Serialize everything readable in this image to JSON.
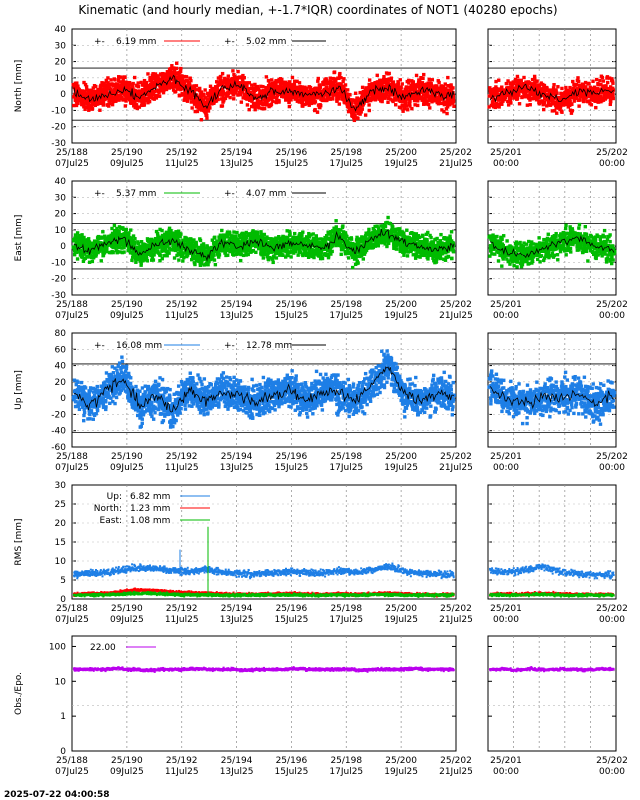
{
  "title": "Kinematic (and hourly median, +-1.7*IQR) coordinates of NOT1 (40280 epochs)",
  "timestamp": "2025-07-22 04:00:58",
  "colors": {
    "north": "#ff0000",
    "east": "#00bb00",
    "up": "#1e7fe6",
    "obs": "#bb00ee",
    "median": "#000000"
  },
  "chart_data": [
    {
      "type": "scatter",
      "name": "north-panel",
      "ylabel": "North [mm]",
      "ylim": [
        -30,
        40
      ],
      "yticks": [
        "40",
        "30",
        "20",
        "10",
        "0",
        "-10",
        "-20",
        "-30"
      ],
      "bands": [
        16,
        -16
      ],
      "legend": [
        "6.19 mm",
        "5.02 mm"
      ],
      "x_ticks_main": [
        "25/188",
        "25/190",
        "25/192",
        "25/194",
        "25/196",
        "25/198",
        "25/200",
        "25/202"
      ],
      "x_dates_main": [
        "07Jul25",
        "09Jul25",
        "11Jul25",
        "13Jul25",
        "15Jul25",
        "17Jul25",
        "19Jul25",
        "21Jul25"
      ],
      "x_ticks_zoom": [
        "25/201",
        "25/202"
      ],
      "x_times_zoom": [
        "00:00",
        "00:00"
      ],
      "series": [
        {
          "name": "",
          "values": [
            1,
            -4,
            0,
            3,
            -2,
            5,
            10,
            2,
            -8,
            4,
            6,
            -3,
            1,
            3,
            -1,
            0,
            5,
            -10,
            2,
            4,
            -2,
            3,
            0,
            -1
          ]
        },
        {
          "name": "",
          "values": [
            -2,
            1,
            4,
            0,
            -5,
            2,
            0,
            3
          ]
        }
      ]
    },
    {
      "type": "scatter",
      "name": "east-panel",
      "ylabel": "East [mm]",
      "ylim": [
        -30,
        40
      ],
      "yticks": [
        "40",
        "30",
        "20",
        "10",
        "0",
        "-10",
        "-20",
        "-30"
      ],
      "bands": [
        14,
        -14
      ],
      "legend": [
        "5.37 mm",
        "4.07 mm"
      ],
      "x_ticks_main": [
        "25/188",
        "25/190",
        "25/192",
        "25/194",
        "25/196",
        "25/198",
        "25/200",
        "25/202"
      ],
      "x_dates_main": [
        "07Jul25",
        "09Jul25",
        "11Jul25",
        "13Jul25",
        "15Jul25",
        "17Jul25",
        "19Jul25",
        "21Jul25"
      ],
      "x_ticks_zoom": [
        "25/201",
        "25/202"
      ],
      "x_times_zoom": [
        "00:00",
        "00:00"
      ],
      "series": [
        {
          "name": "",
          "values": [
            0,
            -3,
            2,
            4,
            -5,
            1,
            3,
            -2,
            -6,
            2,
            0,
            3,
            -1,
            2,
            1,
            -2,
            6,
            -4,
            5,
            8,
            2,
            0,
            -2,
            0
          ]
        },
        {
          "name": "",
          "values": [
            2,
            -4,
            -6,
            -2,
            3,
            5,
            0,
            -3
          ]
        }
      ]
    },
    {
      "type": "scatter",
      "name": "up-panel",
      "ylabel": "Up [mm]",
      "ylim": [
        -60,
        80
      ],
      "yticks": [
        "80",
        "60",
        "40",
        "20",
        "0",
        "-20",
        "-40",
        "-60"
      ],
      "bands": [
        42,
        -42
      ],
      "legend": [
        "16.08 mm",
        "12.78 mm"
      ],
      "x_ticks_main": [
        "25/188",
        "25/190",
        "25/192",
        "25/194",
        "25/196",
        "25/198",
        "25/200",
        "25/202"
      ],
      "x_dates_main": [
        "07Jul25",
        "09Jul25",
        "11Jul25",
        "13Jul25",
        "15Jul25",
        "17Jul25",
        "19Jul25",
        "21Jul25"
      ],
      "x_ticks_zoom": [
        "25/201",
        "25/202"
      ],
      "x_times_zoom": [
        "00:00",
        "00:00"
      ],
      "series": [
        {
          "name": "",
          "values": [
            5,
            -8,
            10,
            25,
            -10,
            5,
            -15,
            12,
            -5,
            8,
            3,
            -6,
            4,
            10,
            -2,
            6,
            8,
            -4,
            15,
            40,
            5,
            -3,
            6,
            2
          ]
        },
        {
          "name": "",
          "values": [
            12,
            -2,
            -5,
            0,
            3,
            5,
            -8,
            2
          ]
        }
      ]
    },
    {
      "type": "scatter",
      "name": "rms-panel",
      "ylabel": "RMS [mm]",
      "ylim": [
        0,
        30
      ],
      "yticks": [
        "30",
        "25",
        "20",
        "15",
        "10",
        "5",
        "0"
      ],
      "bands": [],
      "legend_labels": [
        "Up:",
        "North:",
        "East:"
      ],
      "legend": [
        "6.82 mm",
        "1.23 mm",
        "1.08 mm"
      ],
      "x_ticks_main": [
        "25/188",
        "25/190",
        "25/192",
        "25/194",
        "25/196",
        "25/198",
        "25/200",
        "25/202"
      ],
      "x_dates_main": [
        "07Jul25",
        "09Jul25",
        "11Jul25",
        "13Jul25",
        "15Jul25",
        "17Jul25",
        "19Jul25",
        "21Jul25"
      ],
      "x_ticks_zoom": [
        "25/201",
        "25/202"
      ],
      "x_times_zoom": [
        "00:00",
        "00:00"
      ],
      "series": [
        {
          "name": "",
          "values": [
            6.5,
            6.8,
            7.0,
            7.6,
            8.2,
            8.0,
            7.4,
            7.2,
            7.8,
            7.0,
            6.8,
            6.6,
            6.9,
            7.2,
            7.0,
            6.8,
            7.4,
            7.0,
            7.6,
            8.6,
            7.2,
            6.6,
            6.4,
            6.5
          ]
        },
        {
          "name": "",
          "values": [
            1.2,
            1.4,
            1.5,
            2.0,
            2.4,
            2.2,
            1.8,
            1.6,
            1.5,
            1.3,
            1.2,
            1.2,
            1.3,
            1.4,
            1.3,
            1.2,
            1.3,
            1.2,
            1.3,
            1.5,
            1.3,
            1.2,
            1.1,
            1.2
          ]
        },
        {
          "name": "",
          "values": [
            1.0,
            1.1,
            1.1,
            1.3,
            1.5,
            1.4,
            1.2,
            1.1,
            1.1,
            1.0,
            1.0,
            1.0,
            1.1,
            1.1,
            1.0,
            1.0,
            1.1,
            1.0,
            1.1,
            1.2,
            1.0,
            1.0,
            1.0,
            1.0
          ]
        }
      ]
    },
    {
      "type": "scatter",
      "name": "obs-panel",
      "ylabel": "Obs./Epo.",
      "yscale": "log",
      "yticks": [
        "100",
        "10",
        "1",
        "0"
      ],
      "legend": [
        "22.00"
      ],
      "x_ticks_main": [
        "25/188",
        "25/190",
        "25/192",
        "25/194",
        "25/196",
        "25/198",
        "25/200",
        "25/202"
      ],
      "x_dates_main": [
        "07Jul25",
        "09Jul25",
        "11Jul25",
        "13Jul25",
        "15Jul25",
        "17Jul25",
        "19Jul25",
        "21Jul25"
      ],
      "x_ticks_zoom": [
        "25/201",
        "25/202"
      ],
      "x_times_zoom": [
        "00:00",
        "00:00"
      ],
      "series": [
        {
          "name": "",
          "values": [
            22,
            22,
            23,
            22,
            21,
            22,
            22,
            23,
            22,
            22,
            21,
            22,
            22,
            23,
            22,
            22,
            22,
            21,
            22,
            22,
            23,
            22,
            22,
            22
          ]
        }
      ]
    }
  ]
}
